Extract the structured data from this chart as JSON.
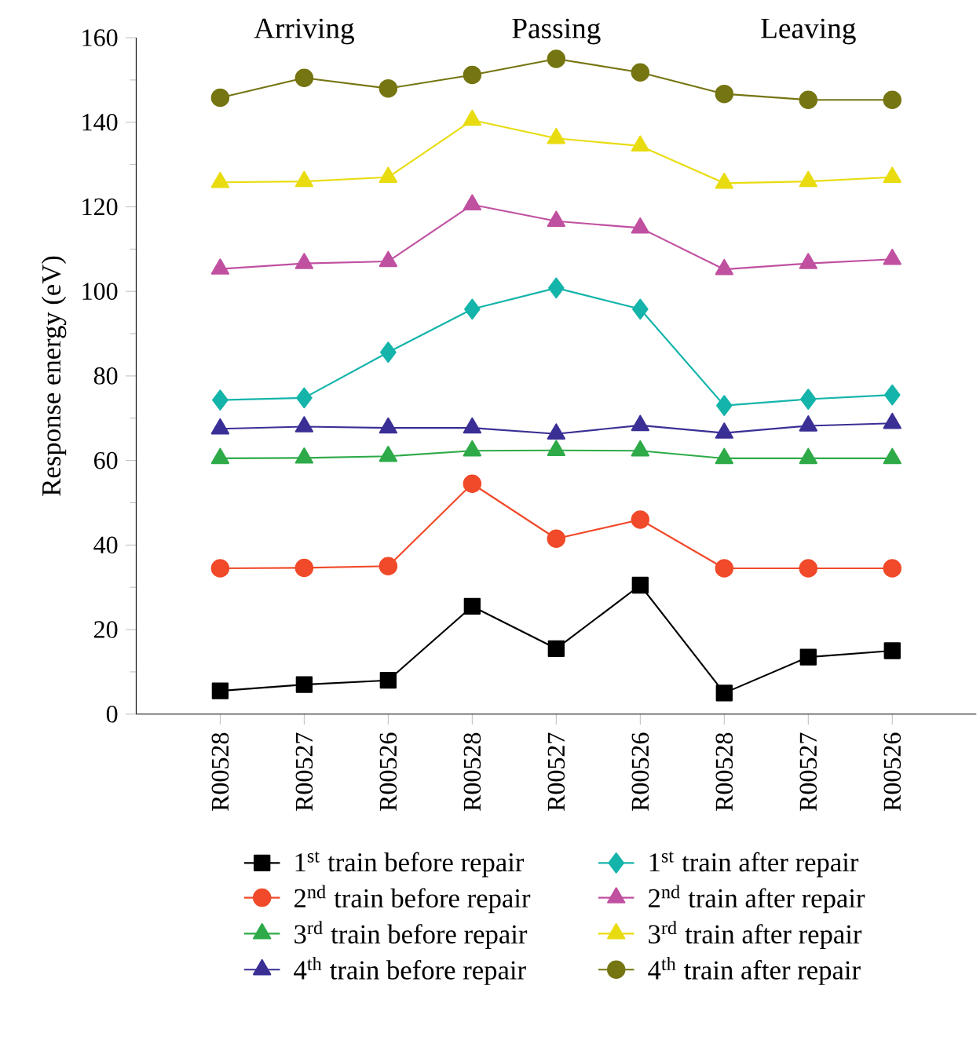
{
  "chart_data": {
    "type": "line",
    "ylabel": "Response energy (eV)",
    "categories": [
      "R00528",
      "R00527",
      "R00526",
      "R00528",
      "R00527",
      "R00526",
      "R00528",
      "R00527",
      "R00526"
    ],
    "annotations": [
      "Arriving",
      "Passing",
      "Leaving"
    ],
    "ylim": [
      0,
      160
    ],
    "yticks": [
      0,
      20,
      40,
      60,
      80,
      100,
      120,
      140,
      160
    ],
    "legend": "bottom",
    "grid": false,
    "series": [
      {
        "name": "1$^{st}$ train before repair",
        "color": "#000000",
        "marker": "square",
        "values": [
          5.5,
          7,
          8,
          25.5,
          15.5,
          30.5,
          5,
          13.5,
          15
        ]
      },
      {
        "name": "2$^{nd}$ train before repair",
        "color": "#f04a2a",
        "marker": "circle",
        "values": [
          34.5,
          34.6,
          35,
          54.5,
          41.5,
          46,
          34.5,
          34.5,
          34.5
        ]
      },
      {
        "name": "3$^{rd}$ train before repair",
        "color": "#2eaa48",
        "marker": "triangle",
        "values": [
          60.5,
          60.6,
          61,
          62.3,
          62.4,
          62.3,
          60.5,
          60.5,
          60.5
        ]
      },
      {
        "name": "4$^{th}$ train before repair",
        "color": "#3a2f95",
        "marker": "triangle",
        "values": [
          67.5,
          68,
          67.7,
          67.7,
          66.3,
          68.3,
          66.5,
          68.2,
          68.8
        ]
      },
      {
        "name": "1$^{st}$ train after repair",
        "color": "#14b4aa",
        "marker": "diamond",
        "values": [
          74.3,
          74.8,
          85.6,
          95.8,
          100.8,
          95.8,
          73,
          74.5,
          75.5
        ]
      },
      {
        "name": "2$^{nd}$ train after repair",
        "color": "#c050a0",
        "marker": "triangle",
        "values": [
          105.3,
          106.6,
          107.1,
          120.5,
          116.6,
          115,
          105.2,
          106.6,
          107.6
        ]
      },
      {
        "name": "3$^{rd}$ train after repair",
        "color": "#e8dc10",
        "marker": "triangle",
        "values": [
          125.8,
          126,
          127,
          140.5,
          136.2,
          134.4,
          125.6,
          126,
          127
        ]
      },
      {
        "name": "4$^{th}$ train after repair",
        "color": "#757512",
        "marker": "circle",
        "values": [
          145.8,
          150.5,
          148,
          151.2,
          155,
          151.8,
          146.7,
          145.3,
          145.3
        ]
      }
    ]
  }
}
